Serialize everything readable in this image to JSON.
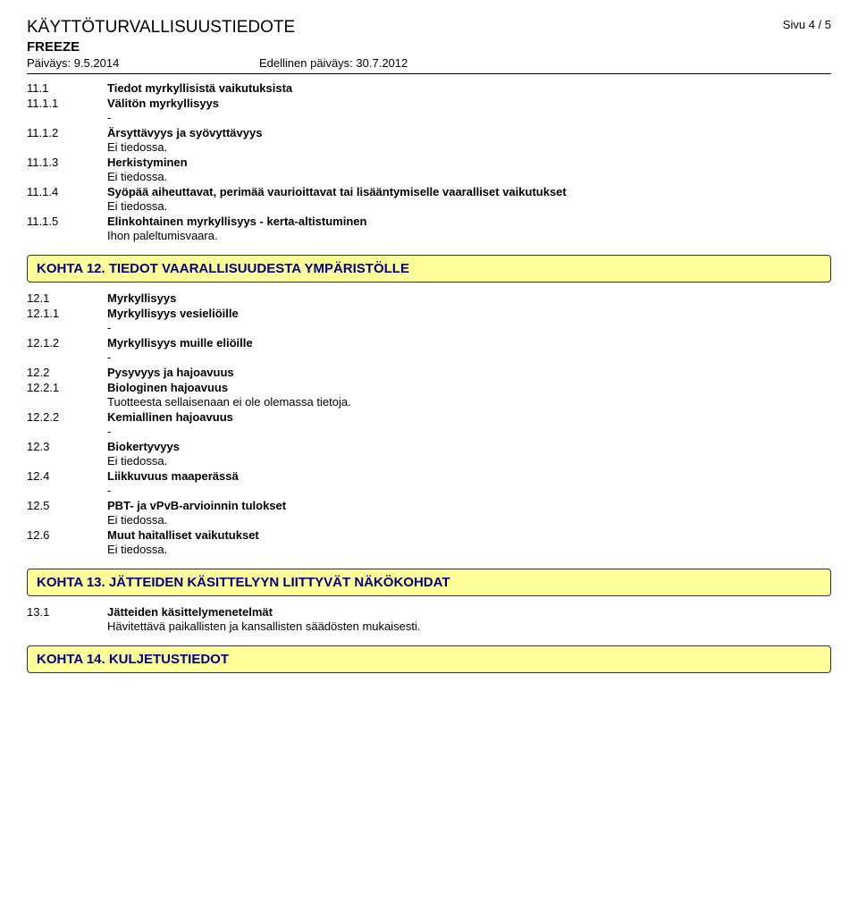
{
  "header": {
    "title": "KÄYTTÖTURVALLISUUSTIEDOTE",
    "page": "Sivu 4 / 5",
    "product": "FREEZE",
    "date1_label": "Päiväys: 9.5.2014",
    "date2_label": "Edellinen päiväys: 30.7.2012"
  },
  "s11": {
    "i1": {
      "num": "11.1",
      "title": "Tiedot myrkyllisistä vaikutuksista"
    },
    "i11": {
      "num": "11.1.1",
      "title": "Välitön myrkyllisyys",
      "val": "-"
    },
    "i12": {
      "num": "11.1.2",
      "title": "Ärsyttävyys ja syövyttävyys",
      "val": "Ei tiedossa."
    },
    "i13": {
      "num": "11.1.3",
      "title": "Herkistyminen",
      "val": "Ei tiedossa."
    },
    "i14": {
      "num": "11.1.4",
      "title": "Syöpää aiheuttavat, perimää vaurioittavat tai lisääntymiselle vaaralliset vaikutukset",
      "val": "Ei tiedossa."
    },
    "i15": {
      "num": "11.1.5",
      "title": "Elinkohtainen myrkyllisyys - kerta-altistuminen",
      "val": "Ihon paleltumisvaara."
    }
  },
  "kohta12": "KOHTA 12. TIEDOT VAARALLISUUDESTA YMPÄRISTÖLLE",
  "s12": {
    "i1": {
      "num": "12.1",
      "title": "Myrkyllisyys"
    },
    "i11": {
      "num": "12.1.1",
      "title": "Myrkyllisyys vesieliöille",
      "val": "-"
    },
    "i12": {
      "num": "12.1.2",
      "title": "Myrkyllisyys muille eliöille",
      "val": "-"
    },
    "i2": {
      "num": "12.2",
      "title": "Pysyvyys ja hajoavuus"
    },
    "i21": {
      "num": "12.2.1",
      "title": "Biologinen hajoavuus",
      "val": "Tuotteesta sellaisenaan ei ole olemassa tietoja."
    },
    "i22": {
      "num": "12.2.2",
      "title": "Kemiallinen hajoavuus",
      "val": "-"
    },
    "i3": {
      "num": "12.3",
      "title": "Biokertyvyys",
      "val": "Ei tiedossa."
    },
    "i4": {
      "num": "12.4",
      "title": "Liikkuvuus maaperässä",
      "val": "-"
    },
    "i5": {
      "num": "12.5",
      "title": "PBT- ja vPvB-arvioinnin tulokset",
      "val": "Ei tiedossa."
    },
    "i6": {
      "num": "12.6",
      "title": "Muut haitalliset vaikutukset",
      "val": "Ei tiedossa."
    }
  },
  "kohta13": "KOHTA 13. JÄTTEIDEN KÄSITTELYYN LIITTYVÄT NÄKÖKOHDAT",
  "s13": {
    "i1": {
      "num": "13.1",
      "title": "Jätteiden käsittelymenetelmät",
      "val": "Hävitettävä paikallisten ja kansallisten säädösten mukaisesti."
    }
  },
  "kohta14": "KOHTA 14. KULJETUSTIEDOT"
}
